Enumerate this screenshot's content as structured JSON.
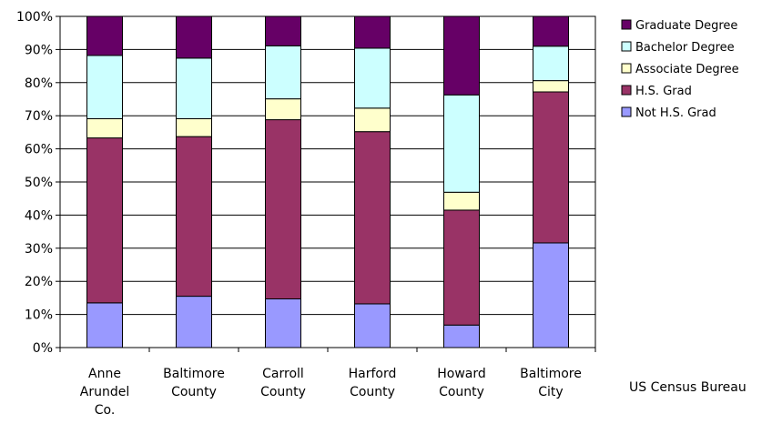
{
  "chart_data": {
    "type": "bar",
    "stacked": true,
    "title": "",
    "xlabel": "",
    "ylabel": "",
    "ylim": [
      0,
      100
    ],
    "y_ticks": [
      "0%",
      "10%",
      "20%",
      "30%",
      "40%",
      "50%",
      "60%",
      "70%",
      "80%",
      "90%",
      "100%"
    ],
    "grid": true,
    "legend_position": "right",
    "categories": [
      [
        "Anne",
        "Arundel",
        "Co."
      ],
      [
        "Baltimore",
        "County"
      ],
      [
        "Carroll",
        "County"
      ],
      [
        "Harford",
        "County"
      ],
      [
        "Howard",
        "County"
      ],
      [
        "Baltimore",
        "City"
      ]
    ],
    "series": [
      {
        "name": "Not H.S. Grad",
        "color": "#9999ff",
        "values": [
          13.5,
          15.5,
          14.7,
          13.2,
          6.8,
          31.6
        ]
      },
      {
        "name": "H.S. Grad",
        "color": "#993366",
        "values": [
          49.8,
          48.2,
          54.1,
          52.0,
          34.7,
          45.6
        ]
      },
      {
        "name": "Associate Degree",
        "color": "#ffffcc",
        "values": [
          5.8,
          5.4,
          6.3,
          7.1,
          5.4,
          3.4
        ]
      },
      {
        "name": "Bachelor Degree",
        "color": "#ccffff",
        "values": [
          19.1,
          18.3,
          16.0,
          18.1,
          29.4,
          10.4
        ]
      },
      {
        "name": "Graduate Degree",
        "color": "#660066",
        "values": [
          11.8,
          12.6,
          8.9,
          9.6,
          23.7,
          9.0
        ]
      }
    ]
  },
  "source": "US Census Bureau"
}
